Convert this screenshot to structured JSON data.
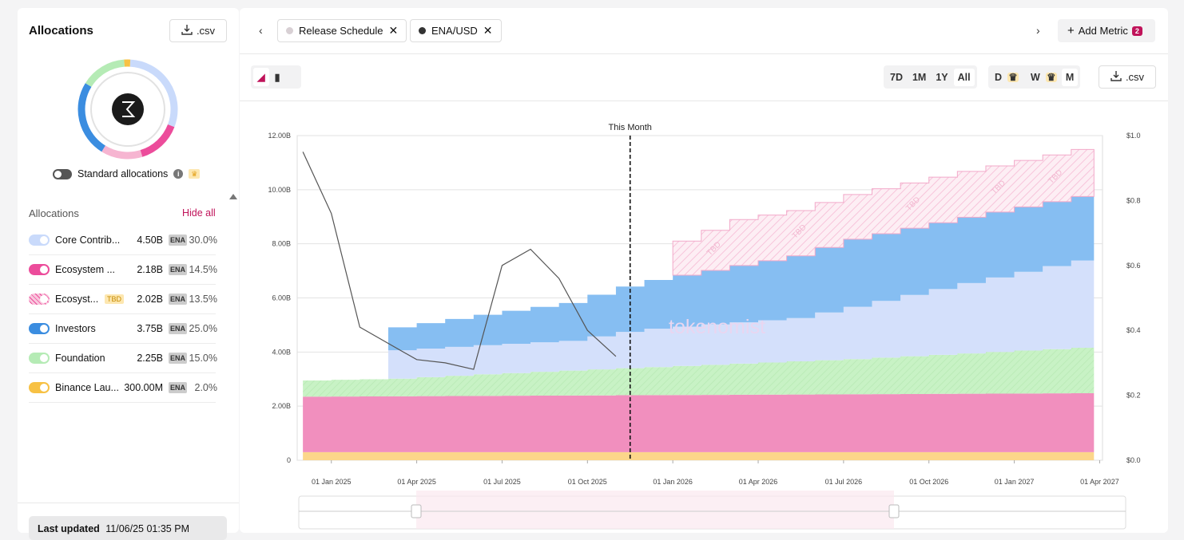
{
  "left_panel": {
    "title": "Allocations",
    "csv_label": ".csv",
    "standard_label": "Standard allocations",
    "list_header": "Allocations",
    "hide_all": "Hide all",
    "items": [
      {
        "name": "Core Contrib...",
        "amount": "4.50B",
        "token": "ENA",
        "pct": "30.0%",
        "color": "#c9dafb"
      },
      {
        "name": "Ecosystem ...",
        "amount": "2.18B",
        "token": "ENA",
        "pct": "14.5%",
        "color": "#ec4c9b"
      },
      {
        "name": "Ecosyst...",
        "tag": "TBD",
        "amount": "2.02B",
        "token": "ENA",
        "pct": "13.5%",
        "color": "#f9c7dd"
      },
      {
        "name": "Investors",
        "amount": "3.75B",
        "token": "ENA",
        "pct": "25.0%",
        "color": "#3b8de0"
      },
      {
        "name": "Foundation",
        "amount": "2.25B",
        "token": "ENA",
        "pct": "15.0%",
        "color": "#b5ebb5"
      },
      {
        "name": "Binance Lau...",
        "amount": "300.00M",
        "token": "ENA",
        "pct": "2.0%",
        "color": "#f7c144"
      }
    ],
    "last_updated_label": "Last updated",
    "last_updated_value": "11/06/25 01:35 PM"
  },
  "topbar": {
    "chips": [
      {
        "label": "Release Schedule",
        "color": "#d8d0d4"
      },
      {
        "label": "ENA/USD",
        "color": "#333333"
      }
    ],
    "add_metric": "Add Metric",
    "add_metric_count": "2"
  },
  "controls": {
    "ranges": [
      "7D",
      "1M",
      "1Y",
      "All"
    ],
    "active_range": "All",
    "intervals": [
      "D",
      "W",
      "M"
    ],
    "csv_label": ".csv"
  },
  "chart_data": {
    "type": "area",
    "title": "",
    "marker_label": "This Month",
    "watermark": "tokenomist",
    "x_ticks": [
      "01 Jan 2025",
      "01 Apr 2025",
      "01 Jul 2025",
      "01 Oct 2025",
      "01 Jan 2026",
      "01 Apr 2026",
      "01 Jul 2026",
      "01 Oct 2026",
      "01 Jan 2027",
      "01 Apr 2027"
    ],
    "y_left_ticks": [
      "0",
      "2.00B",
      "4.00B",
      "6.00B",
      "8.00B",
      "10.00B",
      "12.00B"
    ],
    "y_right_ticks": [
      "$0.0",
      "$0.2",
      "$0.4",
      "$0.6",
      "$0.8",
      "$1.0"
    ],
    "ylim_left": [
      0,
      12
    ],
    "ylim_right": [
      0,
      1
    ],
    "x_range_months": [
      -1.2,
      27.1
    ],
    "this_month_x": 10.5,
    "tbd_label": "TBD",
    "series": [
      {
        "name": "Binance Launchpool",
        "color": "#fcd68a",
        "start": -1,
        "steps": [
          [
            -1,
            0.3
          ]
        ]
      },
      {
        "name": "Ecosystem",
        "color": "#f18fbe",
        "start": -1,
        "steps": [
          [
            -1,
            2.05
          ],
          [
            26.8,
            2.18
          ]
        ]
      },
      {
        "name": "Foundation",
        "color": "#c8f2c5",
        "start": -1,
        "steps": [
          [
            -1,
            0.6
          ],
          [
            0,
            0.62
          ],
          [
            2,
            0.65
          ],
          [
            5,
            0.8
          ],
          [
            10,
            1.0
          ],
          [
            18,
            1.3
          ],
          [
            26.8,
            1.72
          ]
        ]
      },
      {
        "name": "Core Contributors",
        "color": "#d4e0fb",
        "start": 2,
        "steps": [
          [
            2,
            1.05
          ],
          [
            8,
            1.1
          ],
          [
            10.5,
            1.4
          ],
          [
            16,
            1.6
          ],
          [
            22,
            2.6
          ],
          [
            26.8,
            3.35
          ]
        ]
      },
      {
        "name": "Investors",
        "color": "#86bef2",
        "start": 2,
        "steps": [
          [
            2,
            0.85
          ],
          [
            8,
            1.4
          ],
          [
            10.5,
            1.75
          ],
          [
            18,
            2.5
          ],
          [
            26.8,
            2.35
          ]
        ]
      },
      {
        "name": "Ecosystem TBD",
        "color": "#fbdbe8",
        "start": 11.5,
        "steps": [
          [
            11.5,
            1.15
          ],
          [
            14,
            1.7
          ],
          [
            18,
            1.65
          ],
          [
            26.8,
            1.75
          ]
        ]
      }
    ],
    "price_line": {
      "name": "ENA/USD",
      "color": "#555555",
      "points": [
        [
          -1,
          0.95
        ],
        [
          0,
          0.76
        ],
        [
          1,
          0.41
        ],
        [
          3,
          0.31
        ],
        [
          4,
          0.3
        ],
        [
          5,
          0.28
        ],
        [
          6,
          0.6
        ],
        [
          7,
          0.65
        ],
        [
          8,
          0.56
        ],
        [
          9,
          0.4
        ],
        [
          10,
          0.32
        ]
      ]
    }
  }
}
